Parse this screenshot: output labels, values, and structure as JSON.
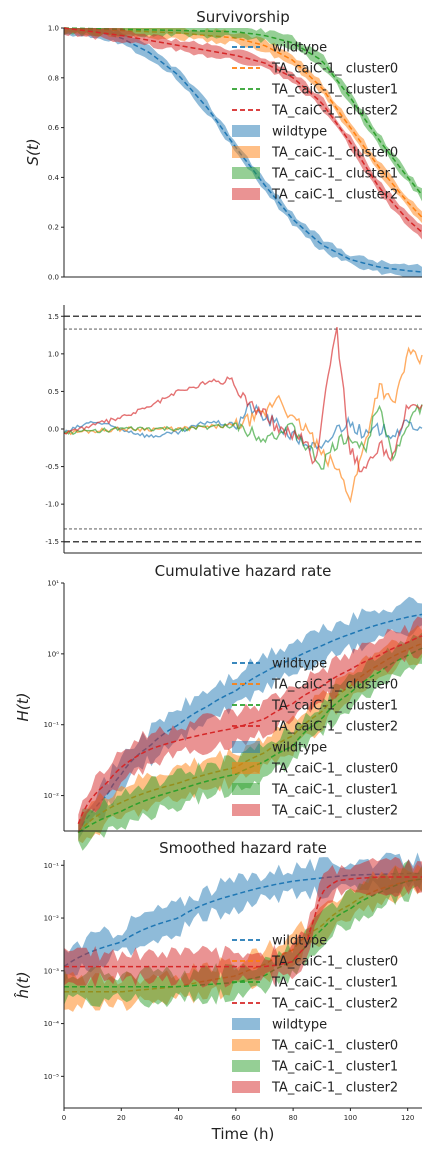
{
  "colors": {
    "wildtype": "#1f77b4",
    "cluster0": "#ff7f0e",
    "cluster1": "#2ca02c",
    "cluster2": "#d62728",
    "axis": "#222222",
    "threshold": "#444444"
  },
  "legend_labels": [
    "wildtype",
    "TA_caiC-1_ cluster0",
    "TA_caiC-1_ cluster1",
    "TA_caiC-1_ cluster2"
  ],
  "xlabel": "Time (h)",
  "x_ticks": [
    "0",
    "20",
    "40",
    "60",
    "80",
    "100",
    "120"
  ],
  "chart_data": [
    {
      "type": "line",
      "title": "Survivorship",
      "ylabel": "S(t)",
      "xlim": [
        0,
        125
      ],
      "ylim": [
        0,
        1.0
      ],
      "y_ticks": [
        "0.0",
        "0.2",
        "0.4",
        "0.6",
        "0.8",
        "1.0"
      ],
      "legend": "center-right",
      "series": [
        {
          "name": "wildtype",
          "style": "dashed-fit+band",
          "x": [
            0,
            10,
            20,
            30,
            40,
            50,
            60,
            70,
            80,
            90,
            100,
            110,
            120,
            125
          ],
          "y": [
            1.0,
            0.99,
            0.96,
            0.9,
            0.81,
            0.68,
            0.52,
            0.37,
            0.23,
            0.13,
            0.07,
            0.04,
            0.025,
            0.02
          ]
        },
        {
          "name": "TA_caiC-1_ cluster0",
          "style": "dashed-fit+band",
          "x": [
            0,
            20,
            40,
            60,
            70,
            80,
            90,
            100,
            110,
            120,
            125
          ],
          "y": [
            1.0,
            0.99,
            0.98,
            0.96,
            0.93,
            0.87,
            0.76,
            0.6,
            0.44,
            0.3,
            0.24
          ]
        },
        {
          "name": "TA_caiC-1_ cluster1",
          "style": "dashed-fit+band",
          "x": [
            0,
            20,
            40,
            60,
            70,
            80,
            90,
            100,
            110,
            120,
            125
          ],
          "y": [
            1.0,
            0.995,
            0.99,
            0.985,
            0.97,
            0.94,
            0.87,
            0.72,
            0.55,
            0.4,
            0.33
          ]
        },
        {
          "name": "TA_caiC-1_ cluster2",
          "style": "dashed-fit+band",
          "x": [
            0,
            20,
            40,
            60,
            70,
            80,
            90,
            100,
            110,
            120,
            125
          ],
          "y": [
            1.0,
            0.97,
            0.93,
            0.89,
            0.86,
            0.8,
            0.7,
            0.54,
            0.36,
            0.23,
            0.18
          ]
        }
      ]
    },
    {
      "type": "line",
      "title": "",
      "ylabel": "",
      "xlim": [
        0,
        125
      ],
      "ylim": [
        -1.65,
        1.65
      ],
      "y_ticks": [
        "-1.5",
        "-1.0",
        "-0.5",
        "0.0",
        "0.5",
        "1.0",
        "1.5"
      ],
      "hlines": [
        1.5,
        1.33,
        -1.33,
        -1.5
      ],
      "series": [
        {
          "name": "wildtype",
          "x": [
            0,
            10,
            20,
            30,
            40,
            50,
            60,
            65,
            70,
            75,
            80,
            85,
            90,
            95,
            100,
            105,
            110,
            115,
            120,
            125
          ],
          "y": [
            -0.05,
            0.1,
            0.0,
            -0.1,
            -0.05,
            0.1,
            0.05,
            0.3,
            0.15,
            0.05,
            -0.1,
            -0.2,
            -0.3,
            0.0,
            0.1,
            -0.1,
            0.0,
            -0.05,
            0.05,
            0.05
          ]
        },
        {
          "name": "TA_caiC-1_ cluster0",
          "x": [
            0,
            20,
            40,
            60,
            70,
            75,
            80,
            85,
            90,
            95,
            100,
            105,
            110,
            115,
            120,
            125
          ],
          "y": [
            -0.05,
            0.0,
            0.0,
            0.05,
            0.2,
            0.45,
            0.1,
            0.0,
            -0.35,
            -0.5,
            -0.9,
            -0.2,
            0.6,
            0.3,
            1.0,
            0.9
          ]
        },
        {
          "name": "TA_caiC-1_ cluster1",
          "x": [
            0,
            20,
            40,
            60,
            70,
            80,
            90,
            95,
            100,
            105,
            110,
            115,
            120,
            125
          ],
          "y": [
            -0.05,
            0.0,
            0.0,
            0.05,
            -0.1,
            0.0,
            -0.5,
            -0.2,
            -0.1,
            -0.3,
            0.4,
            -0.4,
            0.1,
            0.3
          ]
        },
        {
          "name": "TA_caiC-1_ cluster2",
          "x": [
            0,
            10,
            20,
            30,
            35,
            40,
            45,
            48,
            52,
            55,
            58,
            60,
            62,
            65,
            70,
            75,
            80,
            85,
            88,
            90,
            95,
            100,
            105,
            110,
            115,
            120,
            125
          ],
          "y": [
            -0.05,
            0.05,
            0.15,
            0.3,
            0.4,
            0.5,
            0.55,
            0.6,
            0.65,
            0.6,
            0.7,
            0.55,
            0.45,
            0.35,
            0.2,
            0.0,
            -0.05,
            -0.2,
            -0.5,
            0.2,
            1.4,
            -0.3,
            -0.6,
            -0.2,
            -0.4,
            0.3,
            0.35
          ]
        }
      ]
    },
    {
      "type": "line",
      "title": "Cumulative hazard rate",
      "ylabel": "H(t)",
      "xlim": [
        0,
        125
      ],
      "ylim_log10": [
        -2.5,
        1
      ],
      "y_ticks": [
        "10⁻²",
        "10⁻¹",
        "10⁰",
        "10¹"
      ],
      "legend": "center-right",
      "series": [
        {
          "name": "wildtype",
          "style": "dashed-fit+band",
          "x": [
            5,
            10,
            15,
            20,
            30,
            40,
            50,
            60,
            70,
            80,
            90,
            100,
            110,
            120,
            125
          ],
          "y": [
            0.003,
            0.006,
            0.01,
            0.02,
            0.05,
            0.1,
            0.18,
            0.3,
            0.55,
            0.85,
            1.3,
            1.9,
            2.6,
            3.3,
            3.6
          ]
        },
        {
          "name": "TA_caiC-1_ cluster0",
          "style": "dashed-fit+band",
          "x": [
            5,
            20,
            40,
            60,
            70,
            80,
            90,
            100,
            110,
            120,
            125
          ],
          "y": [
            0.003,
            0.008,
            0.015,
            0.025,
            0.04,
            0.07,
            0.15,
            0.35,
            0.7,
            1.15,
            1.4
          ]
        },
        {
          "name": "TA_caiC-1_ cluster1",
          "style": "dashed-fit+band",
          "x": [
            5,
            20,
            40,
            60,
            70,
            80,
            90,
            100,
            110,
            120,
            125
          ],
          "y": [
            0.003,
            0.006,
            0.012,
            0.02,
            0.03,
            0.05,
            0.12,
            0.28,
            0.55,
            0.95,
            1.2
          ]
        },
        {
          "name": "TA_caiC-1_ cluster2",
          "style": "dashed-fit+band",
          "x": [
            5,
            15,
            20,
            30,
            40,
            50,
            60,
            70,
            80,
            90,
            100,
            110,
            120,
            125
          ],
          "y": [
            0.004,
            0.015,
            0.025,
            0.045,
            0.06,
            0.075,
            0.09,
            0.12,
            0.2,
            0.35,
            0.6,
            0.95,
            1.45,
            1.8
          ]
        }
      ]
    },
    {
      "type": "line",
      "title": "Smoothed hazard rate",
      "ylabel": "ĥ(t)",
      "xlim": [
        0,
        125
      ],
      "ylim_log10": [
        -5.6,
        -0.9
      ],
      "y_ticks": [
        "10⁻⁵",
        "10⁻⁴",
        "10⁻³",
        "10⁻²",
        "10⁻¹"
      ],
      "legend": "lower-right",
      "series": [
        {
          "name": "wildtype",
          "style": "dashed-fit+band",
          "x": [
            0,
            20,
            40,
            60,
            80,
            100,
            120,
            125
          ],
          "y": [
            0.0012,
            0.0035,
            0.01,
            0.028,
            0.05,
            0.065,
            0.07,
            0.07
          ]
        },
        {
          "name": "TA_caiC-1_ cluster0",
          "style": "dashed-fit+band",
          "x": [
            0,
            20,
            40,
            60,
            70,
            80,
            90,
            100,
            110,
            120,
            125
          ],
          "y": [
            0.0004,
            0.0004,
            0.0005,
            0.0008,
            0.0013,
            0.0025,
            0.007,
            0.018,
            0.035,
            0.05,
            0.055
          ]
        },
        {
          "name": "TA_caiC-1_ cluster1",
          "style": "dashed-fit+band",
          "x": [
            0,
            20,
            40,
            60,
            70,
            80,
            85,
            90,
            100,
            110,
            120,
            125
          ],
          "y": [
            0.0005,
            0.0005,
            0.0005,
            0.0006,
            0.0008,
            0.0015,
            0.003,
            0.006,
            0.015,
            0.03,
            0.05,
            0.055
          ]
        },
        {
          "name": "TA_caiC-1_ cluster2",
          "style": "dashed-fit+band",
          "x": [
            0,
            20,
            40,
            60,
            70,
            75,
            80,
            85,
            88,
            90,
            95,
            100,
            110,
            120,
            125
          ],
          "y": [
            0.0012,
            0.0012,
            0.0012,
            0.0012,
            0.0012,
            0.0013,
            0.0015,
            0.003,
            0.012,
            0.03,
            0.05,
            0.055,
            0.06,
            0.06,
            0.06
          ]
        }
      ]
    }
  ]
}
